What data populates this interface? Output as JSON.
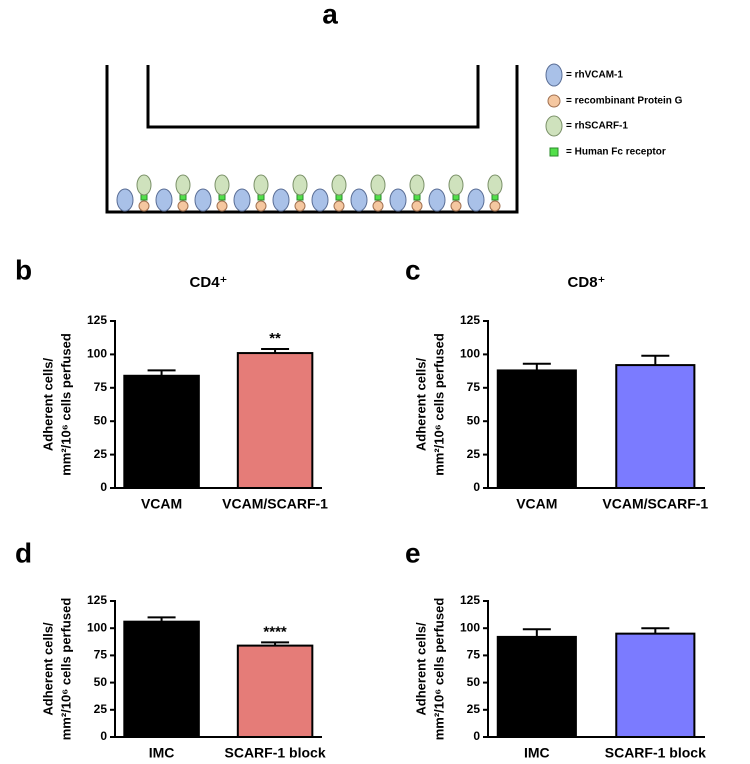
{
  "diagram": {
    "label": "a",
    "legend": [
      "= rhVCAM-1",
      "= recombinant Protein G",
      "= rhSCARF-1",
      "= Human Fc receptor"
    ]
  },
  "chart_data": [
    {
      "type": "bar",
      "label": "b",
      "title": "CD4⁺",
      "y_label": [
        "Adherent cells/",
        "mm²/10⁶ cells perfused"
      ],
      "categories": [
        "VCAM",
        "VCAM/SCARF-1"
      ],
      "values": [
        84,
        101
      ],
      "errors": [
        4,
        3
      ],
      "colors": [
        "#000000",
        "#e57c78"
      ],
      "significance": [
        null,
        "**"
      ],
      "ylim": [
        0,
        125
      ],
      "yticks": [
        0,
        25,
        50,
        75,
        100,
        125
      ]
    },
    {
      "type": "bar",
      "label": "c",
      "title": "CD8⁺",
      "y_label": [
        "Adherent cells/",
        "mm²/10⁶ cells perfused"
      ],
      "categories": [
        "VCAM",
        "VCAM/SCARF-1"
      ],
      "values": [
        88,
        92
      ],
      "errors": [
        5,
        7
      ],
      "colors": [
        "#000000",
        "#7b7bff"
      ],
      "significance": [
        null,
        null
      ],
      "ylim": [
        0,
        125
      ],
      "yticks": [
        0,
        25,
        50,
        75,
        100,
        125
      ]
    },
    {
      "type": "bar",
      "label": "d",
      "y_label": [
        "Adherent cells/",
        "mm²/10⁶ cells perfused"
      ],
      "categories": [
        "IMC",
        "SCARF-1 block"
      ],
      "values": [
        106,
        84
      ],
      "errors": [
        4,
        3
      ],
      "colors": [
        "#000000",
        "#e57c78"
      ],
      "significance": [
        null,
        "****"
      ],
      "ylim": [
        0,
        125
      ],
      "yticks": [
        0,
        25,
        50,
        75,
        100,
        125
      ]
    },
    {
      "type": "bar",
      "label": "e",
      "y_label": [
        "Adherent cells/",
        "mm²/10⁶ cells perfused"
      ],
      "categories": [
        "IMC",
        "SCARF-1 block"
      ],
      "values": [
        92,
        95
      ],
      "errors": [
        7,
        5
      ],
      "colors": [
        "#000000",
        "#7b7bff"
      ],
      "significance": [
        null,
        null
      ],
      "ylim": [
        0,
        125
      ],
      "yticks": [
        0,
        25,
        50,
        75,
        100,
        125
      ]
    }
  ]
}
